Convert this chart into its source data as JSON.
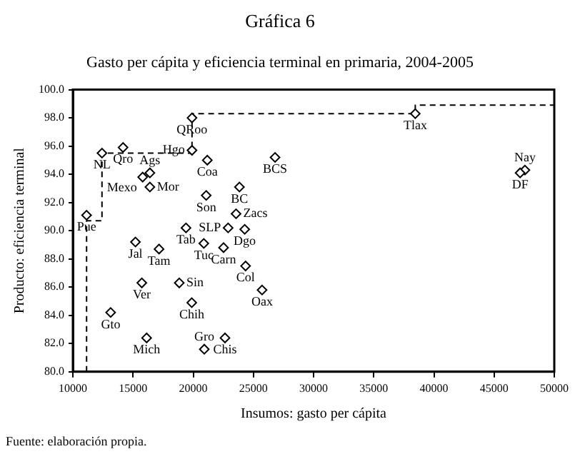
{
  "chart_data": {
    "type": "scatter",
    "title": "Gráfica 6",
    "subtitle": "Gasto per cápita y eficiencia terminal en primaria, 2004-2005",
    "xlabel": "Insumos: gasto per cápita",
    "ylabel": "Producto: eficiencia terminal",
    "series": [
      {
        "color": "#000000",
        "marker": "diamond",
        "x": [
          19900,
          19900,
          12420,
          14170,
          16400,
          15800,
          16400,
          21170,
          21080,
          23840,
          26800,
          11140,
          19400,
          22900,
          23560,
          24280,
          15200,
          17160,
          20880,
          22520,
          24350,
          25720,
          15730,
          18840,
          19880,
          13140,
          16130,
          22640,
          20920,
          38450,
          47560,
          47160
        ],
        "values": [
          98.0,
          95.7,
          95.5,
          95.9,
          94.1,
          93.8,
          93.1,
          95.0,
          92.5,
          93.1,
          95.2,
          91.1,
          90.2,
          90.2,
          91.2,
          90.1,
          89.2,
          88.7,
          89.1,
          88.8,
          87.5,
          85.8,
          86.3,
          86.3,
          84.9,
          84.2,
          82.4,
          82.4,
          81.6,
          98.3,
          94.3,
          94.1
        ]
      },
      {
        "type": "line",
        "color": "#000000",
        "line_style": "dashed",
        "marker": "none",
        "x": [
          11140,
          11140,
          12420,
          12420,
          19900,
          19900,
          38450,
          38450,
          50000
        ],
        "values": [
          80.0,
          90.7,
          90.7,
          95.5,
          95.5,
          98.3,
          98.3,
          98.9,
          98.9
        ]
      }
    ],
    "annotations": [
      {
        "text": "QRoo",
        "x": 19900,
        "y": 98.0
      },
      {
        "text": "Hgo",
        "x": 19900,
        "y": 95.7
      },
      {
        "text": "NL",
        "x": 12420,
        "y": 95.5
      },
      {
        "text": "Qro",
        "x": 14170,
        "y": 95.9
      },
      {
        "text": "Ags",
        "x": 16400,
        "y": 94.1
      },
      {
        "text": "Mexo",
        "x": 15800,
        "y": 93.8
      },
      {
        "text": "Mor",
        "x": 16400,
        "y": 93.1
      },
      {
        "text": "Coa",
        "x": 21170,
        "y": 95.0
      },
      {
        "text": "Son",
        "x": 21080,
        "y": 92.5
      },
      {
        "text": "BC",
        "x": 23840,
        "y": 93.1
      },
      {
        "text": "BCS",
        "x": 26800,
        "y": 95.2
      },
      {
        "text": "Pue",
        "x": 11140,
        "y": 91.1
      },
      {
        "text": "Tab",
        "x": 19400,
        "y": 90.2
      },
      {
        "text": "SLP",
        "x": 22900,
        "y": 90.2
      },
      {
        "text": "Zacs",
        "x": 23560,
        "y": 91.2
      },
      {
        "text": "Dgo",
        "x": 24280,
        "y": 90.1
      },
      {
        "text": "Jal",
        "x": 15200,
        "y": 89.2
      },
      {
        "text": "Tam",
        "x": 17160,
        "y": 88.7
      },
      {
        "text": "Tuc",
        "x": 20880,
        "y": 89.1
      },
      {
        "text": "Carn",
        "x": 22520,
        "y": 88.8
      },
      {
        "text": "Col",
        "x": 24350,
        "y": 87.5
      },
      {
        "text": "Oax",
        "x": 25720,
        "y": 85.8
      },
      {
        "text": "Ver",
        "x": 15730,
        "y": 86.3
      },
      {
        "text": "Sin",
        "x": 18840,
        "y": 86.3
      },
      {
        "text": "Chih",
        "x": 19880,
        "y": 84.9
      },
      {
        "text": "Gto",
        "x": 13140,
        "y": 84.2
      },
      {
        "text": "Mich",
        "x": 16130,
        "y": 82.4
      },
      {
        "text": "Chis",
        "x": 22640,
        "y": 82.4
      },
      {
        "text": "Gro",
        "x": 20920,
        "y": 81.6
      },
      {
        "text": "Tlax",
        "x": 38450,
        "y": 98.3
      },
      {
        "text": "Nay",
        "x": 47560,
        "y": 94.3
      },
      {
        "text": "DF",
        "x": 47160,
        "y": 94.1
      },
      "Fuente: elaboración propia."
    ],
    "xlim": [
      10000,
      50000
    ],
    "xticks": [
      10000,
      15000,
      20000,
      25000,
      30000,
      35000,
      40000,
      45000,
      50000
    ],
    "ylim": [
      80,
      100
    ],
    "yticks": [
      {
        "value": 80,
        "label": "80.0"
      },
      {
        "value": 82,
        "label": "82.0"
      },
      {
        "value": 84,
        "label": "84.0"
      },
      {
        "value": 86,
        "label": "86.0"
      },
      {
        "value": 88,
        "label": "88.0"
      },
      {
        "value": 90,
        "label": "90.0"
      },
      {
        "value": 92,
        "label": "92.0"
      },
      {
        "value": 94,
        "label": "94.0"
      },
      {
        "value": 96,
        "label": "96.0"
      },
      {
        "value": 98,
        "label": "98.0"
      },
      {
        "value": 100,
        "label": "100.0"
      }
    ],
    "grid": false,
    "legend": false
  }
}
